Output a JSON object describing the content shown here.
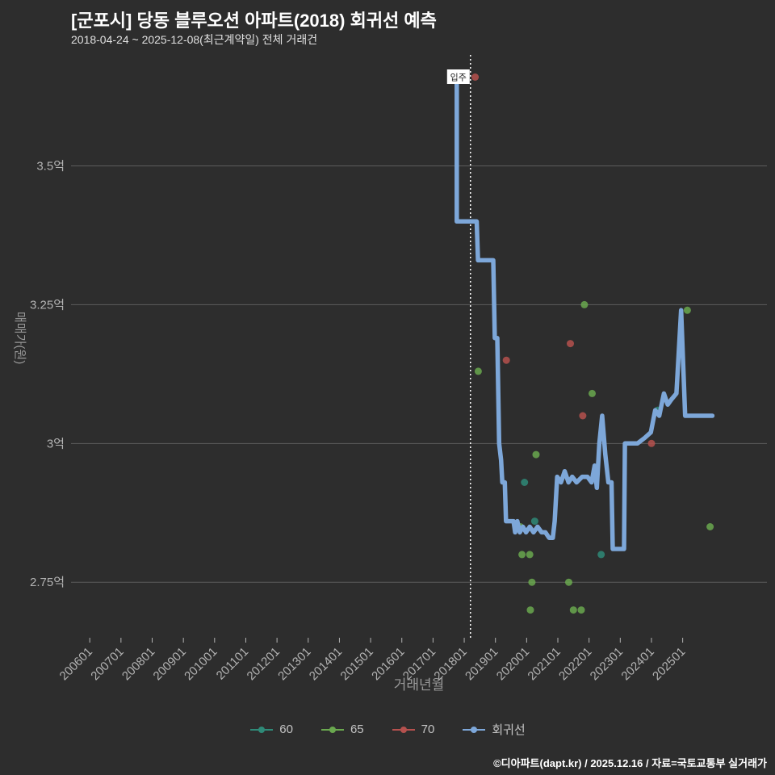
{
  "title": "[군포시] 당동 블루오션 아파트(2018) 회귀선 예측",
  "subtitle": "2018-04-24 ~ 2025-12-08(최근계약일) 전체 거래건",
  "footer": "©디아파트(dapt.kr) / 2025.12.16 / 자료=국토교통부 실거래가",
  "colors": {
    "background": "#2d2d2d",
    "grid": "#5c5c5c",
    "tick_text": "#b3b3b3",
    "axis_title_text": "#999999",
    "title_text": "#ffffff",
    "subtitle_text": "#e0e0e0",
    "legend_text": "#c4c4c4",
    "footer_text": "#ffffff",
    "annotation_line": "#ffffff",
    "annotation_box": "#ffffff",
    "annotation_text": "#222222"
  },
  "chart_data": {
    "type": "scatter",
    "xlabel": "거래년월",
    "ylabel": "매매가(원)",
    "xlim": [
      2005.4,
      2027.7
    ],
    "ylim": [
      2.65,
      3.7
    ],
    "grid": true,
    "legend_position": "bottom-center",
    "x_ticks": [
      "200601",
      "200701",
      "200801",
      "200901",
      "201001",
      "201101",
      "201201",
      "201301",
      "201401",
      "201501",
      "201601",
      "201701",
      "201801",
      "201901",
      "202001",
      "202101",
      "202201",
      "202301",
      "202401",
      "202501"
    ],
    "y_ticks": [
      {
        "label": "3.5억",
        "value": 3.5
      },
      {
        "label": "3.25억",
        "value": 3.25
      },
      {
        "label": "3억",
        "value": 3.0
      },
      {
        "label": "2.75억",
        "value": 2.75
      }
    ],
    "annotation": {
      "label": "입주",
      "x": 2018.2
    },
    "series": [
      {
        "name": "60",
        "type": "scatter",
        "color": "#2f8a78",
        "points": [
          [
            2019.93,
            2.93
          ],
          [
            2020.26,
            2.86
          ],
          [
            2022.39,
            2.8
          ],
          [
            2024.2,
            3.06
          ]
        ]
      },
      {
        "name": "65",
        "type": "scatter",
        "color": "#6aa84f",
        "points": [
          [
            2018.45,
            3.13
          ],
          [
            2019.8,
            2.85
          ],
          [
            2019.85,
            2.8
          ],
          [
            2020.1,
            2.8
          ],
          [
            2020.17,
            2.75
          ],
          [
            2020.12,
            2.7
          ],
          [
            2020.3,
            2.98
          ],
          [
            2021.35,
            2.75
          ],
          [
            2021.5,
            2.7
          ],
          [
            2021.75,
            2.7
          ],
          [
            2021.85,
            3.25
          ],
          [
            2022.1,
            3.09
          ],
          [
            2025.15,
            3.24
          ],
          [
            2025.88,
            2.85
          ]
        ]
      },
      {
        "name": "70",
        "type": "scatter",
        "color": "#b5514e",
        "points": [
          [
            2018.35,
            3.66
          ],
          [
            2019.35,
            3.15
          ],
          [
            2021.4,
            3.18
          ],
          [
            2021.8,
            3.05
          ],
          [
            2024.0,
            3.0
          ]
        ]
      },
      {
        "name": "회귀선",
        "type": "line",
        "color": "#7da7d9",
        "points": [
          [
            2017.76,
            3.66
          ],
          [
            2017.76,
            3.4
          ],
          [
            2018.4,
            3.4
          ],
          [
            2018.44,
            3.33
          ],
          [
            2018.93,
            3.33
          ],
          [
            2018.98,
            3.19
          ],
          [
            2019.06,
            3.19
          ],
          [
            2019.12,
            3.0
          ],
          [
            2019.18,
            2.97
          ],
          [
            2019.22,
            2.93
          ],
          [
            2019.3,
            2.93
          ],
          [
            2019.34,
            2.86
          ],
          [
            2019.58,
            2.86
          ],
          [
            2019.63,
            2.84
          ],
          [
            2019.7,
            2.86
          ],
          [
            2019.78,
            2.84
          ],
          [
            2019.88,
            2.85
          ],
          [
            2019.98,
            2.84
          ],
          [
            2020.1,
            2.85
          ],
          [
            2020.22,
            2.84
          ],
          [
            2020.35,
            2.85
          ],
          [
            2020.48,
            2.84
          ],
          [
            2020.6,
            2.84
          ],
          [
            2020.72,
            2.83
          ],
          [
            2020.84,
            2.83
          ],
          [
            2020.9,
            2.86
          ],
          [
            2020.98,
            2.94
          ],
          [
            2021.1,
            2.93
          ],
          [
            2021.22,
            2.95
          ],
          [
            2021.34,
            2.93
          ],
          [
            2021.46,
            2.94
          ],
          [
            2021.6,
            2.93
          ],
          [
            2021.78,
            2.94
          ],
          [
            2021.95,
            2.94
          ],
          [
            2022.08,
            2.93
          ],
          [
            2022.18,
            2.96
          ],
          [
            2022.25,
            2.92
          ],
          [
            2022.33,
            3.0
          ],
          [
            2022.42,
            3.05
          ],
          [
            2022.52,
            2.98
          ],
          [
            2022.62,
            2.93
          ],
          [
            2022.72,
            2.93
          ],
          [
            2022.76,
            2.81
          ],
          [
            2023.12,
            2.81
          ],
          [
            2023.15,
            3.0
          ],
          [
            2023.55,
            3.0
          ],
          [
            2023.78,
            3.01
          ],
          [
            2023.98,
            3.02
          ],
          [
            2024.12,
            3.06
          ],
          [
            2024.25,
            3.05
          ],
          [
            2024.4,
            3.09
          ],
          [
            2024.52,
            3.07
          ],
          [
            2024.65,
            3.08
          ],
          [
            2024.8,
            3.09
          ],
          [
            2024.95,
            3.24
          ],
          [
            2025.08,
            3.05
          ],
          [
            2025.95,
            3.05
          ]
        ]
      }
    ],
    "legend": [
      "60",
      "65",
      "70",
      "회귀선"
    ]
  }
}
